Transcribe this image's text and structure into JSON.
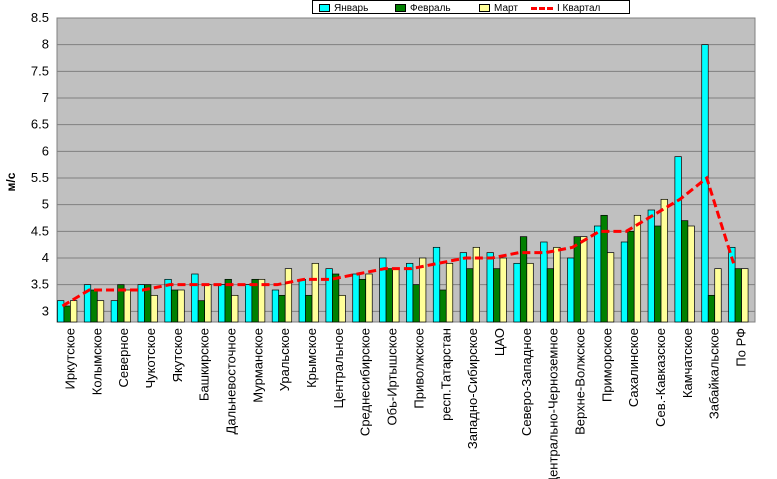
{
  "chart_data": {
    "type": "bar",
    "ylabel": "м/с",
    "xlabel": "",
    "ylim": [
      2.8,
      8.5
    ],
    "yticks": [
      "8.5",
      "8",
      "7.5",
      "7",
      "6.5",
      "6",
      "5.5",
      "5",
      "4.5",
      "4",
      "3.5",
      "3"
    ],
    "grid": true,
    "legend_position": "top-center",
    "categories": [
      "Иркутское",
      "Колымское",
      "Северное",
      "Чукотское",
      "Якутское",
      "Башкирское",
      "Дальневосточное",
      "Мурманское",
      "Уральское",
      "Крымское",
      "Центральное",
      "Среднесибирское",
      "Обь-Иртышское",
      "Приволжское",
      "респ.Татарстан",
      "Западно-Сибирское",
      "ЦАО",
      "Северо-Западное",
      "Центрально-Черноземное",
      "Верхне-Волжское",
      "Приморское",
      "Сахалинское",
      "Сев.-Кавказское",
      "Камчатское",
      "Забайкальское",
      "По РФ"
    ],
    "series": [
      {
        "name": "Январь",
        "color": "#00ffff",
        "values": [
          3.2,
          3.5,
          3.2,
          3.5,
          3.6,
          3.7,
          3.5,
          3.5,
          3.4,
          3.6,
          3.8,
          3.7,
          4.0,
          3.9,
          4.2,
          4.1,
          4.1,
          3.9,
          4.3,
          4.0,
          4.6,
          4.3,
          4.9,
          5.9,
          8.0,
          4.2
        ]
      },
      {
        "name": "Февраль",
        "color": "#008000",
        "values": [
          3.1,
          3.4,
          3.5,
          3.5,
          3.4,
          3.2,
          3.6,
          3.6,
          3.3,
          3.3,
          3.7,
          3.6,
          3.8,
          3.5,
          3.4,
          3.8,
          3.8,
          4.4,
          3.8,
          4.4,
          4.8,
          4.5,
          4.6,
          4.7,
          3.3,
          3.8
        ]
      },
      {
        "name": "Март",
        "color": "#ffff99",
        "values": [
          3.2,
          3.2,
          3.4,
          3.3,
          3.4,
          3.5,
          3.3,
          3.6,
          3.8,
          3.9,
          3.3,
          3.7,
          3.8,
          4.0,
          3.9,
          4.2,
          4.0,
          3.9,
          4.2,
          4.4,
          4.1,
          4.8,
          5.1,
          4.6,
          3.8,
          3.8
        ]
      },
      {
        "name": "I Квартал",
        "color": "#ff0000",
        "type": "line",
        "values": [
          3.1,
          3.4,
          3.4,
          3.4,
          3.5,
          3.5,
          3.5,
          3.5,
          3.5,
          3.6,
          3.6,
          3.7,
          3.8,
          3.8,
          3.9,
          4.0,
          4.0,
          4.1,
          4.1,
          4.2,
          4.5,
          4.5,
          4.8,
          5.1,
          5.5,
          3.9
        ]
      }
    ]
  }
}
